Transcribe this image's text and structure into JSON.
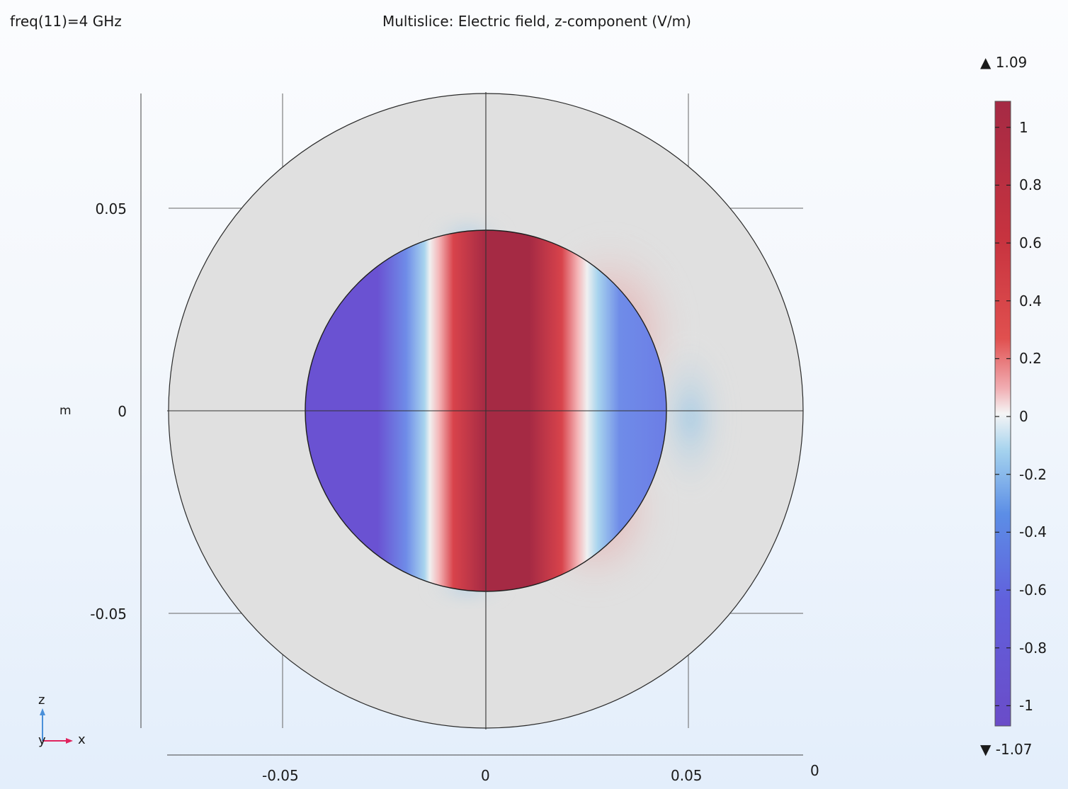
{
  "header": {
    "parameter_label": "freq(11)=4 GHz",
    "plot_title": "Multislice: Electric field, z-component (V/m)"
  },
  "axes": {
    "unit_label": "m",
    "y_ticks": [
      {
        "value": 0.05,
        "label": "0.05"
      },
      {
        "value": 0,
        "label": "0"
      },
      {
        "value": -0.05,
        "label": "-0.05"
      }
    ],
    "x_ticks": [
      {
        "value": -0.05,
        "label": "-0.05"
      },
      {
        "value": 0,
        "label": "0"
      },
      {
        "value": 0.05,
        "label": "0.05"
      }
    ],
    "depth_label": "0"
  },
  "triad": {
    "z_label": "z",
    "y_label": "y",
    "x_label": "x",
    "z_color": "#4a90d9",
    "x_color": "#e0245e"
  },
  "colorbar": {
    "max_marker": "▲",
    "max_label": "1.09",
    "min_marker": "▼",
    "min_label": "-1.07",
    "range": [
      -1.07,
      1.09
    ],
    "ticks": [
      {
        "value": 1,
        "label": "1"
      },
      {
        "value": 0.8,
        "label": "0.8"
      },
      {
        "value": 0.6,
        "label": "0.6"
      },
      {
        "value": 0.4,
        "label": "0.4"
      },
      {
        "value": 0.2,
        "label": "0.2"
      },
      {
        "value": 0,
        "label": "0"
      },
      {
        "value": -0.2,
        "label": "-0.2"
      },
      {
        "value": -0.4,
        "label": "-0.4"
      },
      {
        "value": -0.6,
        "label": "-0.6"
      },
      {
        "value": -0.8,
        "label": "-0.8"
      },
      {
        "value": -1,
        "label": "-1"
      }
    ],
    "colors": {
      "high": "#a52a44",
      "mid_high": "#d8404a",
      "zero": "#f2f2f2",
      "mid_low": "#5a86e6",
      "low": "#6a4fd0"
    }
  },
  "colors": {
    "outer_domain": "#e0e0e0",
    "grid": "#555555",
    "axis": "#333333"
  }
}
